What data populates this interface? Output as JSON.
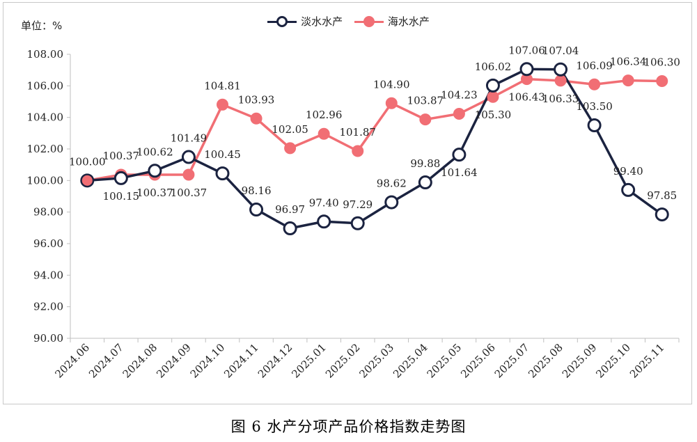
{
  "caption": "图 6  水产分项产品价格指数走势图",
  "unit_label": "单位：%",
  "colors": {
    "freshwater": "#1b2340",
    "seawater": "#f16e74",
    "axis": "#bfbfbf"
  },
  "chart_data": {
    "type": "line",
    "categories": [
      "2024.06",
      "2024.07",
      "2024.08",
      "2024.09",
      "2024.10",
      "2024.11",
      "2024.12",
      "2025.01",
      "2025.02",
      "2025.03",
      "2025.04",
      "2025.05",
      "2025.06",
      "2025.07",
      "2025.08",
      "2025.09",
      "2025.10",
      "2025.11"
    ],
    "ylim": [
      90,
      108
    ],
    "yticks": [
      "90.00",
      "92.00",
      "94.00",
      "96.00",
      "98.00",
      "100.00",
      "102.00",
      "104.00",
      "106.00",
      "108.00"
    ],
    "legend_position": "top-center",
    "grid": false,
    "series": [
      {
        "name": "淡水水产",
        "values": [
          100.0,
          100.15,
          100.62,
          101.49,
          100.45,
          98.16,
          96.97,
          97.4,
          97.29,
          98.62,
          99.88,
          101.64,
          106.02,
          107.06,
          107.04,
          103.5,
          99.4,
          97.85
        ],
        "labels": [
          "100.00",
          "100.15",
          "100.62",
          "101.49",
          "100.45",
          "98.16",
          "96.97",
          "97.40",
          "97.29",
          "98.62",
          "99.88",
          "101.64",
          "106.02",
          "107.06",
          "107.04",
          "103.50",
          "99.40",
          "97.85"
        ]
      },
      {
        "name": "海水水产",
        "values": [
          100.0,
          100.37,
          100.37,
          100.37,
          104.81,
          103.93,
          102.05,
          102.96,
          101.87,
          104.9,
          103.87,
          104.23,
          105.3,
          106.43,
          106.33,
          106.09,
          106.34,
          106.3
        ],
        "labels": [
          "",
          "100.37",
          "100.37",
          "100.37",
          "104.81",
          "103.93",
          "102.05",
          "102.96",
          "101.87",
          "104.90",
          "103.87",
          "104.23",
          "105.30",
          "106.43",
          "106.33",
          "106.09",
          "106.34",
          "106.30"
        ]
      }
    ]
  }
}
